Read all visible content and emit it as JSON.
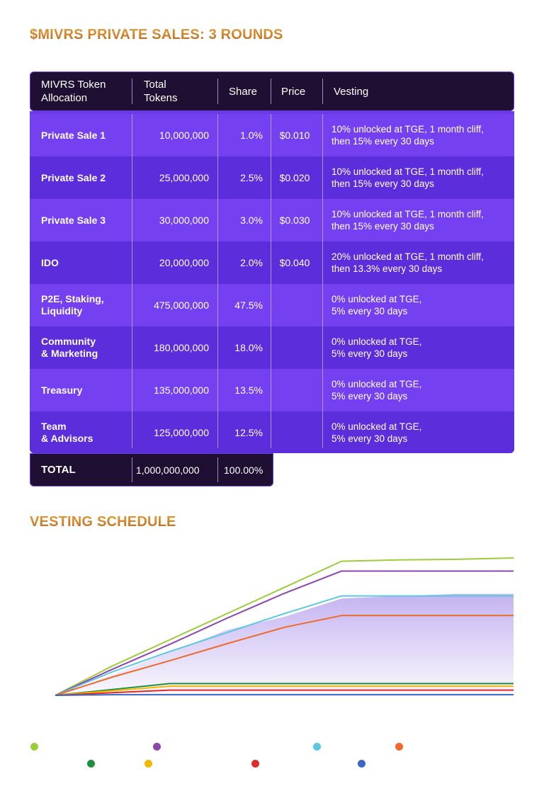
{
  "title": "$MIVRS PRIVATE SALES: 3 ROUNDS",
  "table": {
    "headers": [
      "MIVRS Token Allocation",
      "Total Tokens",
      "Share",
      "Price",
      "Vesting"
    ],
    "header_lines": [
      [
        "MIVRS Token",
        "Allocation"
      ],
      [
        "Total",
        "Tokens"
      ],
      [
        "Share"
      ],
      [
        "Price"
      ],
      [
        "Vesting"
      ]
    ],
    "rows": [
      {
        "allocation": [
          "Private Sale 1"
        ],
        "tokens": "10,000,000",
        "share": "1.0%",
        "price": "$0.010",
        "vesting": [
          "10% unlocked at TGE, 1 month cliff,",
          "then 15% every 30 days"
        ]
      },
      {
        "allocation": [
          "Private Sale 2"
        ],
        "tokens": "25,000,000",
        "share": "2.5%",
        "price": "$0.020",
        "vesting": [
          "10% unlocked at TGE, 1 month cliff,",
          "then 15% every 30 days"
        ]
      },
      {
        "allocation": [
          "Private Sale 3"
        ],
        "tokens": "30,000,000",
        "share": "3.0%",
        "price": "$0.030",
        "vesting": [
          "10% unlocked at TGE, 1 month cliff,",
          "then 15% every 30 days"
        ]
      },
      {
        "allocation": [
          "IDO"
        ],
        "tokens": "20,000,000",
        "share": "2.0%",
        "price": "$0.040",
        "vesting": [
          "20% unlocked at TGE, 1 month cliff,",
          "then 13.3% every 30 days"
        ]
      },
      {
        "allocation": [
          "P2E, Staking,",
          "Liquidity"
        ],
        "tokens": "475,000,000",
        "share": "47.5%",
        "price": "",
        "vesting": [
          "0% unlocked at TGE,",
          "5% every 30 days"
        ]
      },
      {
        "allocation": [
          "Community",
          "& Marketing"
        ],
        "tokens": "180,000,000",
        "share": "18.0%",
        "price": "",
        "vesting": [
          "0% unlocked at TGE,",
          "5% every 30 days"
        ]
      },
      {
        "allocation": [
          "Treasury"
        ],
        "tokens": "135,000,000",
        "share": "13.5%",
        "price": "",
        "vesting": [
          "0% unlocked at TGE,",
          "5% every 30 days"
        ]
      },
      {
        "allocation": [
          "Team",
          "& Advisors"
        ],
        "tokens": "125,000,000",
        "share": "12.5%",
        "price": "",
        "vesting": [
          "0% unlocked at TGE,",
          "5% every 30 days"
        ]
      }
    ],
    "total": {
      "label": "TOTAL",
      "tokens": "1,000,000,000",
      "share": "100.00%"
    }
  },
  "vesting_title": "VESTING SCHEDULE",
  "chart_data": {
    "type": "line",
    "title": "VESTING SCHEDULE",
    "xlabel": "",
    "ylabel": "",
    "x": [
      0,
      1,
      2,
      3,
      4,
      5,
      6,
      7,
      8
    ],
    "ylim": [
      0,
      210
    ],
    "grid": false,
    "series": [
      {
        "name": "",
        "color": "#9ccc3c",
        "values": [
          0,
          45,
          85,
          125,
          165,
          205,
          207,
          208,
          210
        ]
      },
      {
        "name": "",
        "color": "#8e44ad",
        "values": [
          0,
          40,
          78,
          118,
          156,
          190,
          190,
          190,
          190
        ]
      },
      {
        "name": "",
        "color": "#5bc8e0",
        "values": [
          0,
          36,
          67,
          96,
          125,
          152,
          152,
          152,
          152
        ]
      },
      {
        "name": "",
        "color": "#f0692a",
        "values": [
          0,
          28,
          53,
          79,
          104,
          122,
          122,
          122,
          122
        ]
      },
      {
        "name": "",
        "color": "#1e8f3e",
        "values": [
          0,
          9,
          18,
          18,
          18,
          18,
          18,
          18,
          18
        ]
      },
      {
        "name": "",
        "color": "#f5b700",
        "values": [
          0,
          7,
          14,
          14,
          14,
          14,
          14,
          14,
          14
        ]
      },
      {
        "name": "",
        "color": "#e02b2b",
        "values": [
          0,
          4,
          8,
          8,
          8,
          8,
          8,
          8,
          8
        ]
      },
      {
        "name": "",
        "color": "#3a66c4",
        "values": [
          0,
          1,
          1,
          1,
          1,
          1,
          1,
          1,
          1
        ]
      }
    ],
    "area": {
      "name": "",
      "color": "#b9a6ee",
      "values": [
        0,
        32,
        66,
        100,
        120,
        148,
        152,
        155,
        155
      ]
    }
  }
}
